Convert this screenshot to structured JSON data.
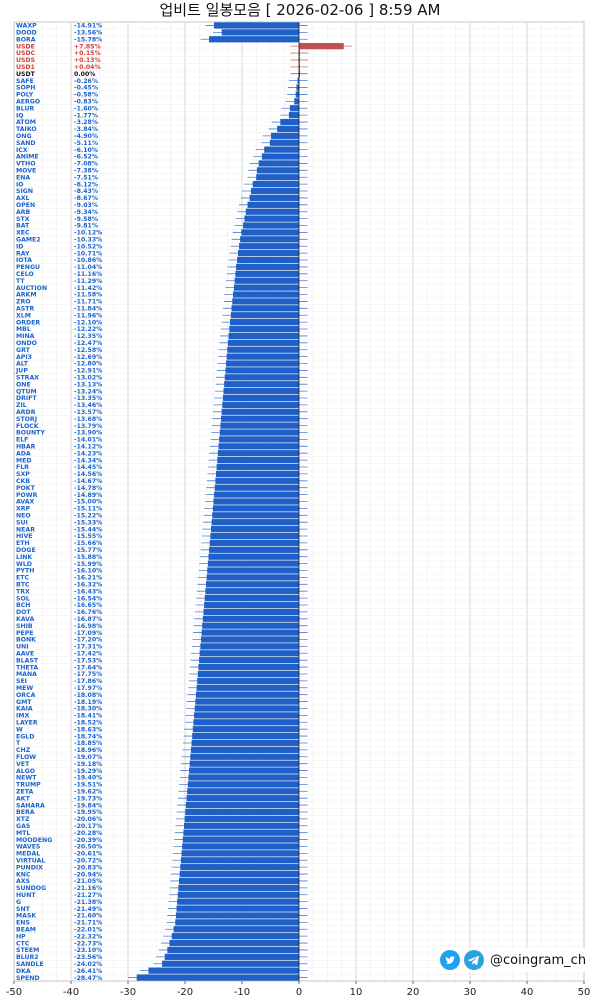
{
  "title": "업비트 일봉모음 [ 2026-02-06 ]  8:59 AM",
  "brand": {
    "handle": "@coingram_ch",
    "icons": [
      "twitter-icon",
      "telegram-icon"
    ]
  },
  "colors": {
    "down": "#1f5fc8",
    "up": "#c0504d",
    "neutral": "#333333",
    "label_blue": "#1a63c9",
    "label_red": "#d43a3a",
    "grid": "#d9d9d9"
  },
  "chart_data": {
    "type": "bar",
    "orientation": "horizontal",
    "xlim": [
      -50,
      50
    ],
    "xticks": [
      -50,
      -40,
      -30,
      -20,
      -10,
      0,
      10,
      20,
      30,
      40,
      50
    ],
    "grid": true,
    "named_rows": [
      {
        "name": "WAXP",
        "pct": "-14.91%",
        "value": -14.91
      },
      {
        "name": "DOOD",
        "pct": "-13.56%",
        "value": -13.56
      },
      {
        "name": "BORA",
        "pct": "-15.78%",
        "value": -15.78
      },
      {
        "name": "USDE",
        "pct": "+7.85%",
        "value": 7.85,
        "color": "up"
      },
      {
        "name": "USDC",
        "pct": "+0.15%",
        "value": 0.15,
        "color": "up"
      },
      {
        "name": "USDS",
        "pct": "+0.13%",
        "value": 0.13,
        "color": "up"
      },
      {
        "name": "USD1",
        "pct": "+0.04%",
        "value": 0.04,
        "color": "up"
      },
      {
        "name": "USDT",
        "pct": "0.00%",
        "value": 0.0,
        "color": "neutral"
      },
      {
        "name": "SAFE",
        "pct": "-0.26%",
        "value": -0.26
      },
      {
        "name": "SOPH",
        "pct": "-0.45%",
        "value": -0.45
      },
      {
        "name": "POLY",
        "pct": "-0.58%",
        "value": -0.58
      },
      {
        "name": "AERGO",
        "pct": "-0.83%",
        "value": -0.83
      },
      {
        "name": "BLUR",
        "pct": "-1.60%",
        "value": -1.6
      },
      {
        "name": "IQ",
        "pct": "-1.77%",
        "value": -1.77
      },
      {
        "name": "ATOM",
        "pct": "-3.28%",
        "value": -3.28
      },
      {
        "name": "TAIKO",
        "pct": "-3.84%",
        "value": -3.84
      },
      {
        "name": "ONG",
        "pct": "-4.90%",
        "value": -4.9
      },
      {
        "name": "SAND",
        "pct": "-5.11%",
        "value": -5.11
      },
      {
        "name": "ICX",
        "pct": "-6.10%",
        "value": -6.1
      },
      {
        "name": "ANIME",
        "pct": "-6.52%",
        "value": -6.52
      },
      {
        "name": "VTHO",
        "pct": "-7.08%",
        "value": -7.08
      },
      {
        "name": "MOVE",
        "pct": "-7.38%",
        "value": -7.38
      },
      {
        "name": "ENA",
        "pct": "-7.51%",
        "value": -7.51
      },
      {
        "name": "IO",
        "pct": "-8.12%",
        "value": -8.12
      },
      {
        "name": "SIGN",
        "pct": "-8.43%",
        "value": -8.43
      },
      {
        "name": "AXL",
        "pct": "-8.67%",
        "value": -8.67
      },
      {
        "name": "OPEN",
        "pct": "-9.03%",
        "value": -9.03
      },
      {
        "name": "ARB",
        "pct": "-9.34%",
        "value": -9.34
      },
      {
        "name": "STX",
        "pct": "-9.58%",
        "value": -9.58
      },
      {
        "name": "BAT",
        "pct": "-9.81%",
        "value": -9.81
      },
      {
        "name": "XEC",
        "pct": "-10.12%",
        "value": -10.12
      },
      {
        "name": "GAME2",
        "pct": "-10.33%",
        "value": -10.33
      },
      {
        "name": "ID",
        "pct": "-10.52%",
        "value": -10.52
      },
      {
        "name": "RAY",
        "pct": "-10.71%",
        "value": -10.71
      },
      {
        "name": "IOTA",
        "pct": "-10.86%",
        "value": -10.86
      },
      {
        "name": "PENGU",
        "pct": "-11.04%",
        "value": -11.04
      },
      {
        "name": "CELO",
        "pct": "-11.16%",
        "value": -11.16
      },
      {
        "name": "TT",
        "pct": "-11.29%",
        "value": -11.29
      },
      {
        "name": "AUCTION",
        "pct": "-11.42%",
        "value": -11.42
      },
      {
        "name": "ARKM",
        "pct": "-11.58%",
        "value": -11.58
      },
      {
        "name": "ZRO",
        "pct": "-11.71%",
        "value": -11.71
      },
      {
        "name": "ASTR",
        "pct": "-11.84%",
        "value": -11.84
      },
      {
        "name": "XLM",
        "pct": "-11.96%",
        "value": -11.96
      },
      {
        "name": "ORDER",
        "pct": "-12.10%",
        "value": -12.1
      },
      {
        "name": "MBL",
        "pct": "-12.22%",
        "value": -12.22
      },
      {
        "name": "MINA",
        "pct": "-12.35%",
        "value": -12.35
      },
      {
        "name": "ONDO",
        "pct": "-12.47%",
        "value": -12.47
      },
      {
        "name": "GRT",
        "pct": "-12.58%",
        "value": -12.58
      },
      {
        "name": "API3",
        "pct": "-12.69%",
        "value": -12.69
      },
      {
        "name": "ALT",
        "pct": "-12.80%",
        "value": -12.8
      },
      {
        "name": "JUP",
        "pct": "-12.91%",
        "value": -12.91
      },
      {
        "name": "STRAX",
        "pct": "-13.02%",
        "value": -13.02
      },
      {
        "name": "ONE",
        "pct": "-13.13%",
        "value": -13.13
      },
      {
        "name": "QTUM",
        "pct": "-13.24%",
        "value": -13.24
      },
      {
        "name": "DRIFT",
        "pct": "-13.35%",
        "value": -13.35
      },
      {
        "name": "ZIL",
        "pct": "-13.46%",
        "value": -13.46
      },
      {
        "name": "ARDR",
        "pct": "-13.57%",
        "value": -13.57
      },
      {
        "name": "STORJ",
        "pct": "-13.68%",
        "value": -13.68
      },
      {
        "name": "FLOCK",
        "pct": "-13.79%",
        "value": -13.79
      },
      {
        "name": "BOUNTY",
        "pct": "-13.90%",
        "value": -13.9
      },
      {
        "name": "ELF",
        "pct": "-14.01%",
        "value": -14.01
      },
      {
        "name": "HBAR",
        "pct": "-14.12%",
        "value": -14.12
      },
      {
        "name": "ADA",
        "pct": "-14.23%",
        "value": -14.23
      },
      {
        "name": "MED",
        "pct": "-14.34%",
        "value": -14.34
      },
      {
        "name": "FLR",
        "pct": "-14.45%",
        "value": -14.45
      },
      {
        "name": "SXP",
        "pct": "-14.56%",
        "value": -14.56
      },
      {
        "name": "CKB",
        "pct": "-14.67%",
        "value": -14.67
      },
      {
        "name": "POKT",
        "pct": "-14.78%",
        "value": -14.78
      },
      {
        "name": "POWR",
        "pct": "-14.89%",
        "value": -14.89
      },
      {
        "name": "AVAX",
        "pct": "-15.00%",
        "value": -15.0
      },
      {
        "name": "XRP",
        "pct": "-15.11%",
        "value": -15.11
      },
      {
        "name": "NEO",
        "pct": "-15.22%",
        "value": -15.22
      },
      {
        "name": "SUI",
        "pct": "-15.33%",
        "value": -15.33
      },
      {
        "name": "NEAR",
        "pct": "-15.44%",
        "value": -15.44
      },
      {
        "name": "HIVE",
        "pct": "-15.55%",
        "value": -15.55
      },
      {
        "name": "ETH",
        "pct": "-15.66%",
        "value": -15.66
      },
      {
        "name": "DOGE",
        "pct": "-15.77%",
        "value": -15.77
      },
      {
        "name": "LINK",
        "pct": "-15.88%",
        "value": -15.88
      },
      {
        "name": "WLD",
        "pct": "-15.99%",
        "value": -15.99
      },
      {
        "name": "PYTH",
        "pct": "-16.10%",
        "value": -16.1
      },
      {
        "name": "ETC",
        "pct": "-16.21%",
        "value": -16.21
      },
      {
        "name": "BTC",
        "pct": "-16.32%",
        "value": -16.32
      },
      {
        "name": "TRX",
        "pct": "-16.43%",
        "value": -16.43
      },
      {
        "name": "SOL",
        "pct": "-16.54%",
        "value": -16.54
      },
      {
        "name": "BCH",
        "pct": "-16.65%",
        "value": -16.65
      },
      {
        "name": "DOT",
        "pct": "-16.76%",
        "value": -16.76
      },
      {
        "name": "KAVA",
        "pct": "-16.87%",
        "value": -16.87
      },
      {
        "name": "SHIB",
        "pct": "-16.98%",
        "value": -16.98
      },
      {
        "name": "PEPE",
        "pct": "-17.09%",
        "value": -17.09
      },
      {
        "name": "BONK",
        "pct": "-17.20%",
        "value": -17.2
      },
      {
        "name": "UNI",
        "pct": "-17.31%",
        "value": -17.31
      },
      {
        "name": "AAVE",
        "pct": "-17.42%",
        "value": -17.42
      },
      {
        "name": "BLAST",
        "pct": "-17.53%",
        "value": -17.53
      },
      {
        "name": "THETA",
        "pct": "-17.64%",
        "value": -17.64
      },
      {
        "name": "MANA",
        "pct": "-17.75%",
        "value": -17.75
      },
      {
        "name": "SEI",
        "pct": "-17.86%",
        "value": -17.86
      },
      {
        "name": "MEW",
        "pct": "-17.97%",
        "value": -17.97
      },
      {
        "name": "ORCA",
        "pct": "-18.08%",
        "value": -18.08
      },
      {
        "name": "GMT",
        "pct": "-18.19%",
        "value": -18.19
      },
      {
        "name": "KAIA",
        "pct": "-18.30%",
        "value": -18.3
      },
      {
        "name": "IMX",
        "pct": "-18.41%",
        "value": -18.41
      },
      {
        "name": "LAYER",
        "pct": "-18.52%",
        "value": -18.52
      },
      {
        "name": "W",
        "pct": "-18.63%",
        "value": -18.63
      },
      {
        "name": "EGLD",
        "pct": "-18.74%",
        "value": -18.74
      },
      {
        "name": "T",
        "pct": "-18.85%",
        "value": -18.85
      },
      {
        "name": "CHZ",
        "pct": "-18.96%",
        "value": -18.96
      },
      {
        "name": "FLOW",
        "pct": "-19.07%",
        "value": -19.07
      },
      {
        "name": "VET",
        "pct": "-19.18%",
        "value": -19.18
      },
      {
        "name": "ALGO",
        "pct": "-19.29%",
        "value": -19.29
      },
      {
        "name": "NEWT",
        "pct": "-19.40%",
        "value": -19.4
      },
      {
        "name": "TRUMP",
        "pct": "-19.51%",
        "value": -19.51
      },
      {
        "name": "ZETA",
        "pct": "-19.62%",
        "value": -19.62
      },
      {
        "name": "AKT",
        "pct": "-19.73%",
        "value": -19.73
      },
      {
        "name": "SAHARA",
        "pct": "-19.84%",
        "value": -19.84
      },
      {
        "name": "BERA",
        "pct": "-19.95%",
        "value": -19.95
      },
      {
        "name": "XTZ",
        "pct": "-20.06%",
        "value": -20.06
      },
      {
        "name": "GAS",
        "pct": "-20.17%",
        "value": -20.17
      },
      {
        "name": "MTL",
        "pct": "-20.28%",
        "value": -20.28
      },
      {
        "name": "MOODENG",
        "pct": "-20.39%",
        "value": -20.39
      },
      {
        "name": "WAVES",
        "pct": "-20.50%",
        "value": -20.5
      },
      {
        "name": "MEDAL",
        "pct": "-20.61%",
        "value": -20.61
      },
      {
        "name": "VIRTUAL",
        "pct": "-20.72%",
        "value": -20.72
      },
      {
        "name": "PUNDIX",
        "pct": "-20.83%",
        "value": -20.83
      },
      {
        "name": "KNC",
        "pct": "-20.94%",
        "value": -20.94
      },
      {
        "name": "AXS",
        "pct": "-21.05%",
        "value": -21.05
      },
      {
        "name": "SUNDOG",
        "pct": "-21.16%",
        "value": -21.16
      },
      {
        "name": "HUNT",
        "pct": "-21.27%",
        "value": -21.27
      },
      {
        "name": "G",
        "pct": "-21.38%",
        "value": -21.38
      },
      {
        "name": "SNT",
        "pct": "-21.49%",
        "value": -21.49
      },
      {
        "name": "MASK",
        "pct": "-21.60%",
        "value": -21.6
      },
      {
        "name": "ENS",
        "pct": "-21.71%",
        "value": -21.71
      },
      {
        "name": "BEAM",
        "pct": "-22.01%",
        "value": -22.01
      },
      {
        "name": "HP",
        "pct": "-22.32%",
        "value": -22.32
      },
      {
        "name": "CTC",
        "pct": "-22.73%",
        "value": -22.73
      },
      {
        "name": "STEEM",
        "pct": "-23.10%",
        "value": -23.1
      },
      {
        "name": "BLUR2",
        "pct": "-23.56%",
        "value": -23.56
      },
      {
        "name": "SANDLE",
        "pct": "-24.02%",
        "value": -24.02
      },
      {
        "name": "DKA",
        "pct": "-26.41%",
        "value": -26.41
      },
      {
        "name": "SPEND",
        "pct": "-28.47%",
        "value": -28.47
      }
    ]
  }
}
